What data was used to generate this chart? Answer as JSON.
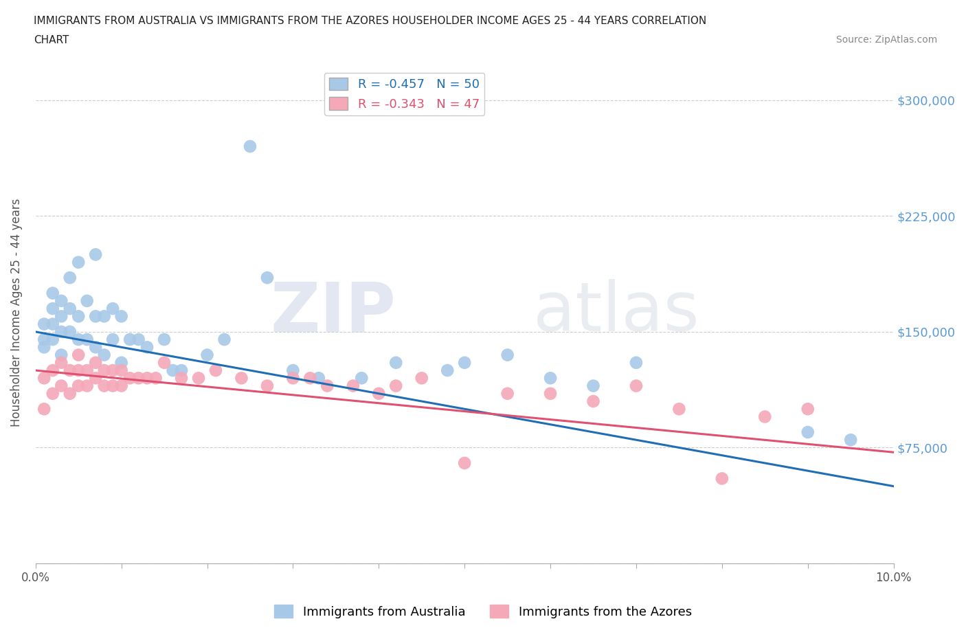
{
  "title_line1": "IMMIGRANTS FROM AUSTRALIA VS IMMIGRANTS FROM THE AZORES HOUSEHOLDER INCOME AGES 25 - 44 YEARS CORRELATION",
  "title_line2": "CHART",
  "source_text": "Source: ZipAtlas.com",
  "watermark_zip": "ZIP",
  "watermark_atlas": "atlas",
  "xlabel": "",
  "ylabel": "Householder Income Ages 25 - 44 years",
  "xlim": [
    0.0,
    0.1
  ],
  "ylim": [
    0,
    325000
  ],
  "yticks": [
    0,
    75000,
    150000,
    225000,
    300000
  ],
  "ytick_labels": [
    "",
    "$75,000",
    "$150,000",
    "$225,000",
    "$300,000"
  ],
  "xticks": [
    0.0,
    0.01,
    0.02,
    0.03,
    0.04,
    0.05,
    0.06,
    0.07,
    0.08,
    0.09,
    0.1
  ],
  "xtick_labels": [
    "0.0%",
    "",
    "",
    "",
    "",
    "",
    "",
    "",
    "",
    "",
    "10.0%"
  ],
  "legend_label_australia": "Immigrants from Australia",
  "legend_label_azores": "Immigrants from the Azores",
  "color_australia": "#a8c8e8",
  "color_azores": "#f4a8b8",
  "color_line_australia": "#1f6eb5",
  "color_line_azores": "#e05070",
  "R_australia": -0.457,
  "N_australia": 50,
  "R_azores": -0.343,
  "N_azores": 47,
  "australia_x": [
    0.001,
    0.001,
    0.001,
    0.002,
    0.002,
    0.002,
    0.002,
    0.003,
    0.003,
    0.003,
    0.003,
    0.004,
    0.004,
    0.004,
    0.005,
    0.005,
    0.005,
    0.006,
    0.006,
    0.007,
    0.007,
    0.007,
    0.008,
    0.008,
    0.009,
    0.009,
    0.01,
    0.01,
    0.011,
    0.012,
    0.013,
    0.015,
    0.016,
    0.017,
    0.02,
    0.022,
    0.025,
    0.027,
    0.03,
    0.033,
    0.038,
    0.042,
    0.048,
    0.05,
    0.055,
    0.06,
    0.065,
    0.07,
    0.09,
    0.095
  ],
  "australia_y": [
    140000,
    145000,
    155000,
    145000,
    155000,
    165000,
    175000,
    135000,
    150000,
    160000,
    170000,
    150000,
    165000,
    185000,
    145000,
    160000,
    195000,
    145000,
    170000,
    140000,
    160000,
    200000,
    135000,
    160000,
    145000,
    165000,
    130000,
    160000,
    145000,
    145000,
    140000,
    145000,
    125000,
    125000,
    135000,
    145000,
    270000,
    185000,
    125000,
    120000,
    120000,
    130000,
    125000,
    130000,
    135000,
    120000,
    115000,
    130000,
    85000,
    80000
  ],
  "azores_x": [
    0.001,
    0.001,
    0.002,
    0.002,
    0.003,
    0.003,
    0.004,
    0.004,
    0.005,
    0.005,
    0.005,
    0.006,
    0.006,
    0.007,
    0.007,
    0.008,
    0.008,
    0.009,
    0.009,
    0.01,
    0.01,
    0.011,
    0.012,
    0.013,
    0.014,
    0.015,
    0.017,
    0.019,
    0.021,
    0.024,
    0.027,
    0.03,
    0.032,
    0.034,
    0.037,
    0.04,
    0.042,
    0.045,
    0.05,
    0.055,
    0.06,
    0.065,
    0.07,
    0.075,
    0.08,
    0.085,
    0.09
  ],
  "azores_y": [
    100000,
    120000,
    110000,
    125000,
    115000,
    130000,
    110000,
    125000,
    115000,
    125000,
    135000,
    115000,
    125000,
    120000,
    130000,
    115000,
    125000,
    115000,
    125000,
    115000,
    125000,
    120000,
    120000,
    120000,
    120000,
    130000,
    120000,
    120000,
    125000,
    120000,
    115000,
    120000,
    120000,
    115000,
    115000,
    110000,
    115000,
    120000,
    65000,
    110000,
    110000,
    105000,
    115000,
    100000,
    55000,
    95000,
    100000
  ]
}
